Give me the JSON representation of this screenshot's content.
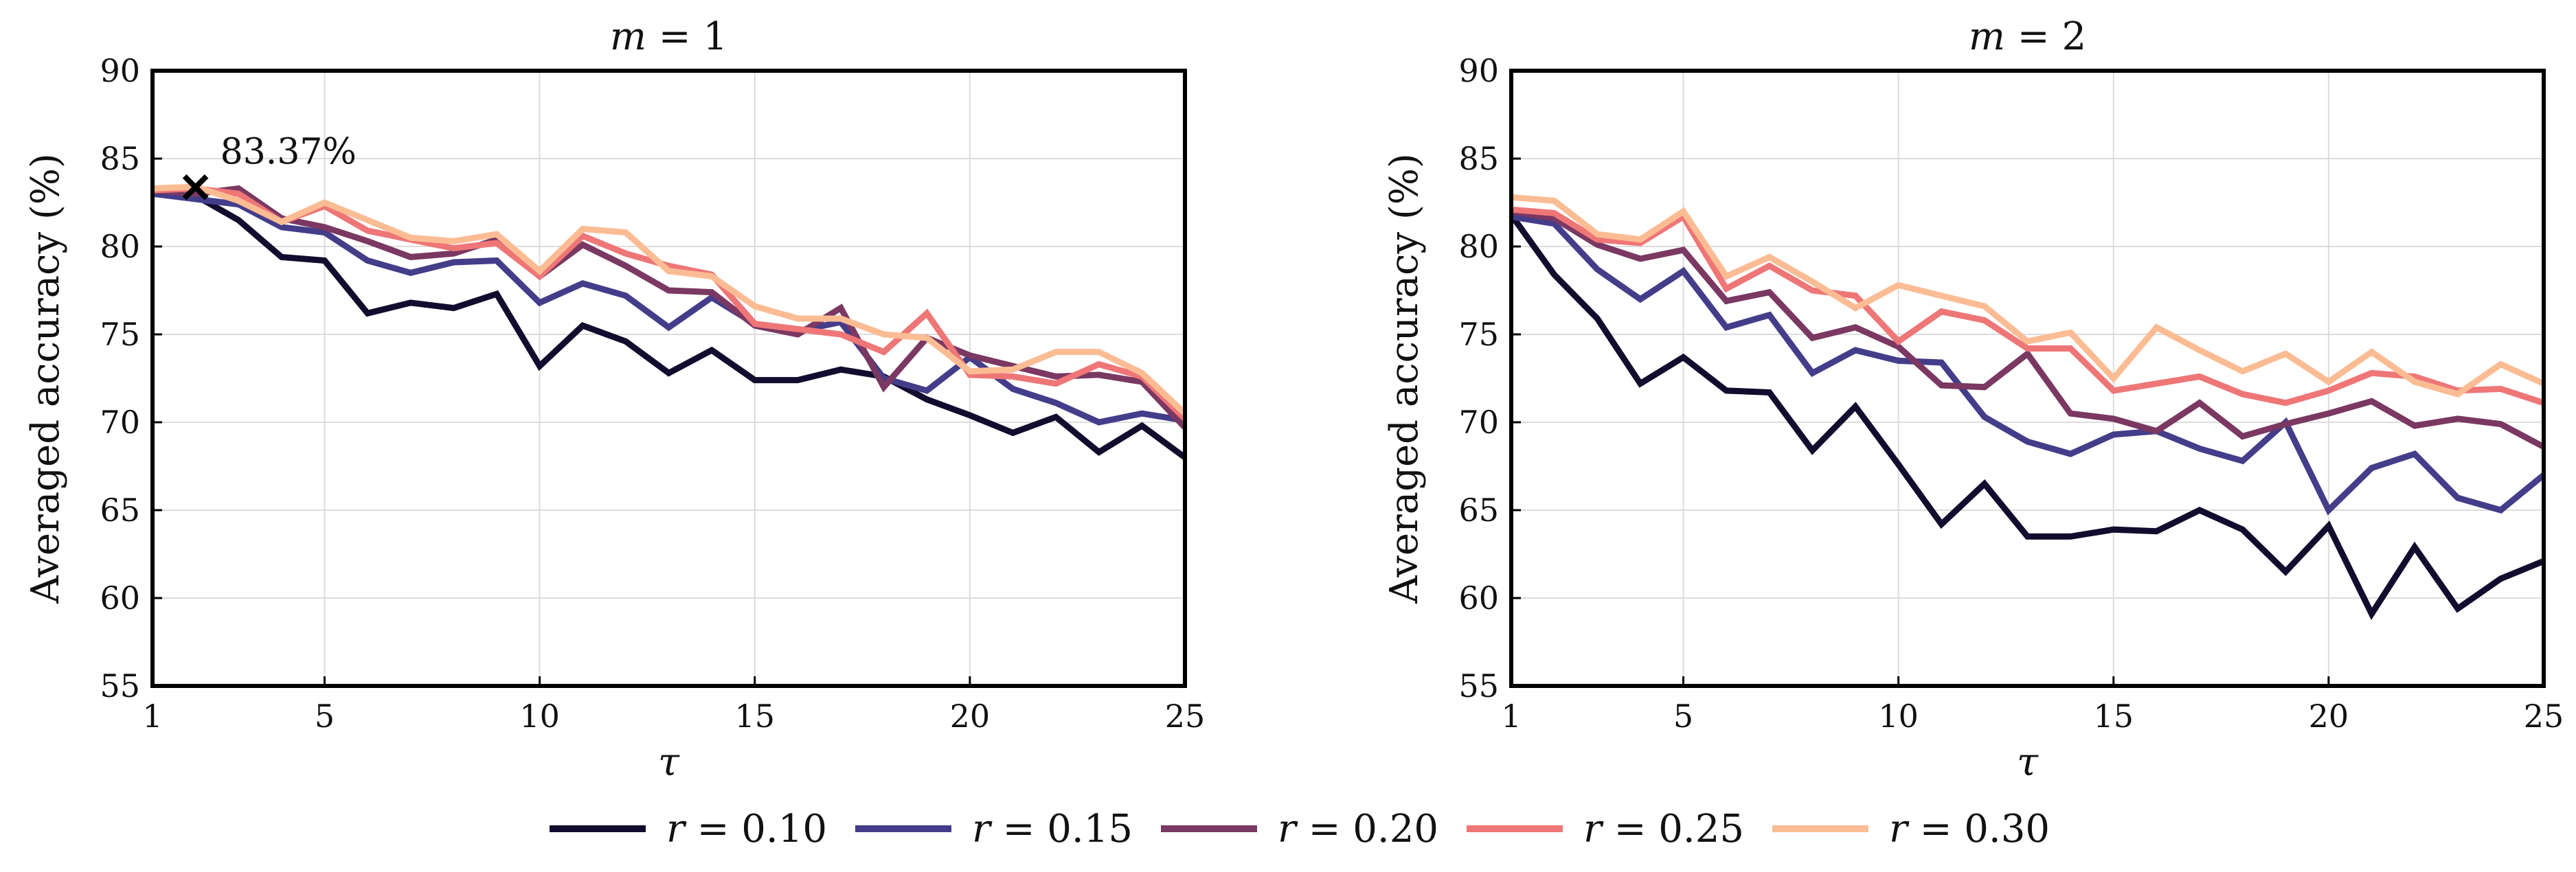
{
  "chart_data": [
    {
      "type": "line",
      "title": "m = 1",
      "xlabel": "τ",
      "ylabel": "Averaged accuracy (%)",
      "xlim": [
        1,
        25
      ],
      "ylim": [
        55,
        90
      ],
      "xticks": [
        1,
        5,
        10,
        15,
        20,
        25
      ],
      "yticks": [
        55,
        60,
        65,
        70,
        75,
        80,
        85,
        90
      ],
      "grid": true,
      "x": [
        1,
        2,
        3,
        4,
        5,
        6,
        7,
        8,
        9,
        10,
        11,
        12,
        13,
        14,
        15,
        16,
        17,
        18,
        19,
        20,
        21,
        22,
        23,
        24,
        25
      ],
      "series": [
        {
          "name": "r = 0.10",
          "values": [
            83.0,
            82.9,
            81.5,
            79.4,
            79.2,
            76.2,
            76.8,
            76.5,
            77.3,
            73.2,
            75.5,
            74.6,
            72.8,
            74.1,
            72.4,
            72.4,
            73.0,
            72.6,
            71.3,
            70.4,
            69.4,
            70.3,
            68.3,
            69.8,
            68.0
          ]
        },
        {
          "name": "r = 0.15",
          "values": [
            83.0,
            82.7,
            82.4,
            81.1,
            80.8,
            79.2,
            78.5,
            79.1,
            79.2,
            76.8,
            77.9,
            77.2,
            75.4,
            77.1,
            75.6,
            75.2,
            75.7,
            72.5,
            71.8,
            73.7,
            71.9,
            71.1,
            70.0,
            70.5,
            70.1
          ]
        },
        {
          "name": "r = 0.20",
          "values": [
            83.2,
            83.0,
            83.3,
            81.6,
            81.1,
            80.3,
            79.4,
            79.6,
            80.4,
            78.3,
            80.1,
            78.9,
            77.5,
            77.4,
            75.5,
            75.0,
            76.5,
            72.0,
            74.8,
            73.8,
            73.2,
            72.6,
            72.7,
            72.3,
            69.7
          ]
        },
        {
          "name": "r = 0.25",
          "values": [
            83.2,
            83.3,
            83.0,
            81.4,
            82.3,
            80.9,
            80.4,
            79.9,
            80.2,
            78.3,
            80.6,
            79.6,
            78.9,
            78.4,
            75.6,
            75.3,
            75.0,
            74.0,
            76.2,
            72.7,
            72.6,
            72.2,
            73.3,
            72.6,
            70.2
          ]
        },
        {
          "name": "r = 0.30",
          "values": [
            83.3,
            83.4,
            82.6,
            81.4,
            82.5,
            81.5,
            80.5,
            80.3,
            80.7,
            78.6,
            81.0,
            80.8,
            78.6,
            78.3,
            76.6,
            75.9,
            75.9,
            75.0,
            74.8,
            72.9,
            73.0,
            74.0,
            74.0,
            72.8,
            70.5
          ]
        }
      ],
      "annotations": [
        {
          "text": "83.37%",
          "x": 2,
          "y": 83.37,
          "marker": "x"
        }
      ]
    },
    {
      "type": "line",
      "title": "m = 2",
      "xlabel": "τ",
      "ylabel": "Averaged accuracy (%)",
      "xlim": [
        1,
        25
      ],
      "ylim": [
        55,
        90
      ],
      "xticks": [
        1,
        5,
        10,
        15,
        20,
        25
      ],
      "yticks": [
        55,
        60,
        65,
        70,
        75,
        80,
        85,
        90
      ],
      "grid": true,
      "x": [
        1,
        2,
        3,
        4,
        5,
        6,
        7,
        8,
        9,
        10,
        11,
        12,
        13,
        14,
        15,
        16,
        17,
        18,
        19,
        20,
        21,
        22,
        23,
        24,
        25
      ],
      "series": [
        {
          "name": "r = 0.10",
          "values": [
            81.8,
            78.4,
            75.9,
            72.2,
            73.7,
            71.8,
            71.7,
            68.4,
            70.9,
            67.6,
            64.2,
            66.5,
            63.5,
            63.5,
            63.9,
            63.8,
            65.0,
            63.9,
            61.5,
            64.1,
            59.1,
            62.9,
            59.4,
            61.1,
            62.1
          ]
        },
        {
          "name": "r = 0.15",
          "values": [
            81.7,
            81.3,
            78.7,
            77.0,
            78.6,
            75.4,
            76.1,
            72.8,
            74.1,
            73.5,
            73.4,
            70.3,
            68.9,
            68.2,
            69.3,
            69.5,
            68.5,
            67.8,
            70.0,
            65.0,
            67.4,
            68.2,
            65.7,
            65.0,
            67.0
          ]
        },
        {
          "name": "r = 0.20",
          "values": [
            82.0,
            81.6,
            80.1,
            79.3,
            79.8,
            76.9,
            77.4,
            74.8,
            75.4,
            74.3,
            72.1,
            72.0,
            73.9,
            70.5,
            70.2,
            69.5,
            71.1,
            69.2,
            69.9,
            70.5,
            71.2,
            69.8,
            70.2,
            69.9,
            68.6
          ]
        },
        {
          "name": "r = 0.25",
          "values": [
            82.1,
            81.9,
            80.4,
            80.2,
            81.7,
            77.6,
            78.9,
            77.5,
            77.2,
            74.6,
            76.3,
            75.8,
            74.2,
            74.2,
            71.8,
            72.2,
            72.6,
            71.6,
            71.1,
            71.8,
            72.8,
            72.6,
            71.8,
            71.9,
            71.1
          ]
        },
        {
          "name": "r = 0.30",
          "values": [
            82.8,
            82.6,
            80.7,
            80.4,
            82.0,
            78.3,
            79.4,
            78.0,
            76.5,
            77.8,
            77.2,
            76.6,
            74.6,
            75.1,
            72.5,
            75.4,
            74.1,
            72.9,
            73.9,
            72.3,
            74.0,
            72.3,
            71.6,
            73.3,
            72.2
          ]
        }
      ]
    }
  ],
  "legend": {
    "placement": "bottom",
    "entries": [
      {
        "label": "r = 0.10",
        "color": "#120d2e"
      },
      {
        "label": "r = 0.15",
        "color": "#433d8a"
      },
      {
        "label": "r = 0.20",
        "color": "#7a3862"
      },
      {
        "label": "r = 0.25",
        "color": "#ee7677"
      },
      {
        "label": "r = 0.30",
        "color": "#fbbc94"
      }
    ]
  }
}
